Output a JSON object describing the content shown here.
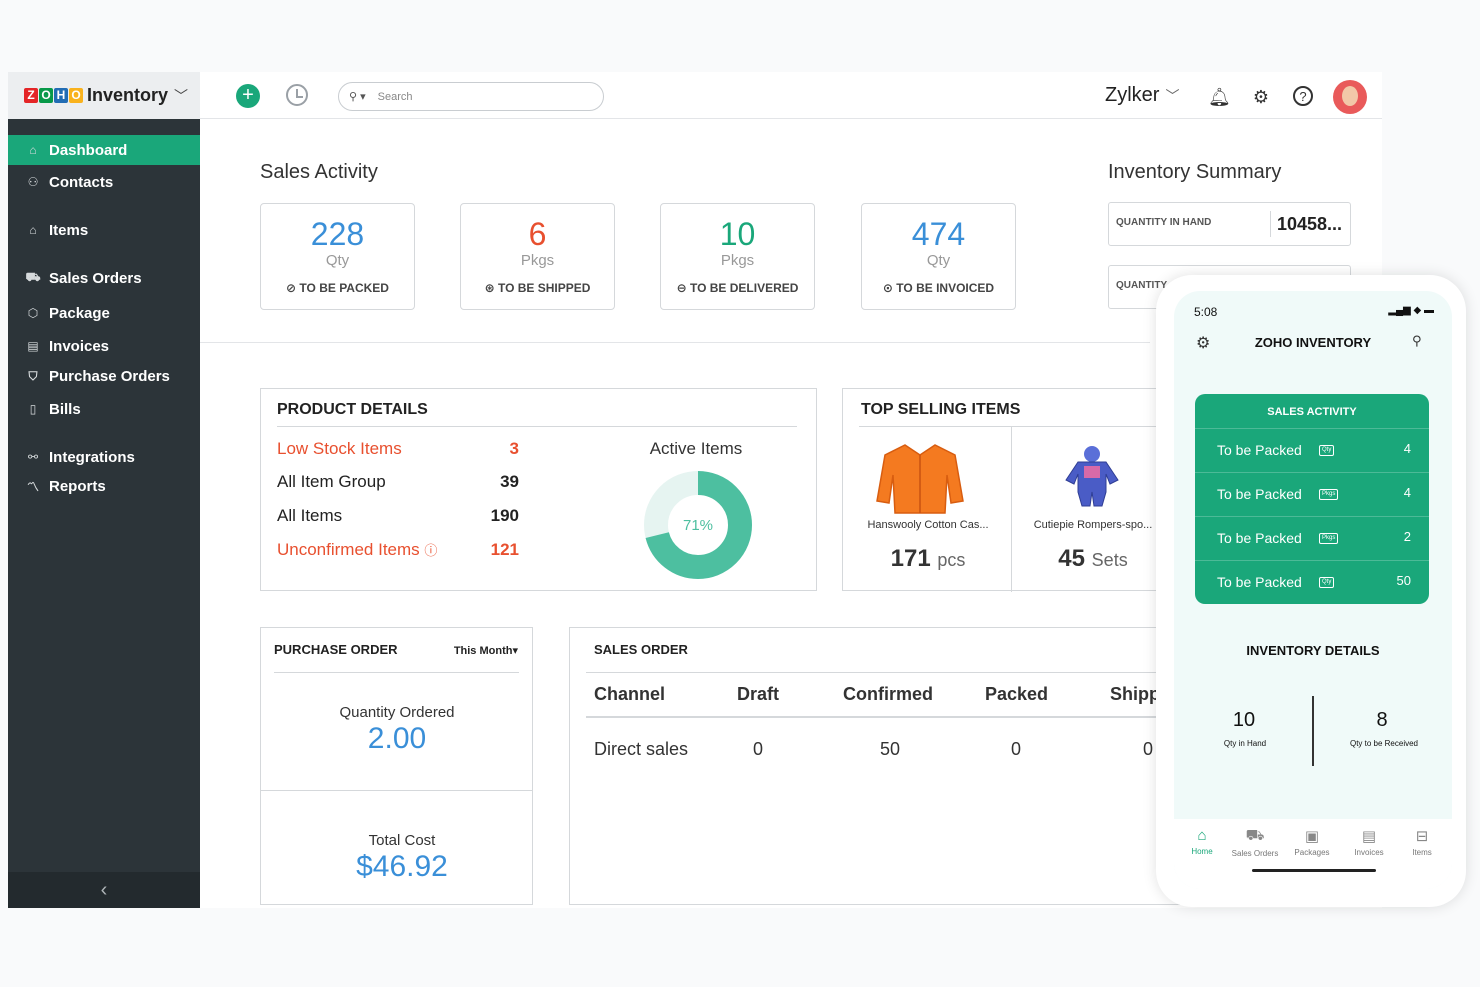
{
  "brand": {
    "name": "Inventory",
    "logo_letters": [
      "Z",
      "O",
      "H",
      "O"
    ]
  },
  "topbar": {
    "search_placeholder": "Search",
    "org_name": "Zylker"
  },
  "sidebar": {
    "items": [
      {
        "label": "Dashboard",
        "icon": "home-icon"
      },
      {
        "label": "Contacts",
        "icon": "user-icon"
      },
      {
        "label": "Items",
        "icon": "basket-icon"
      },
      {
        "label": "Sales Orders",
        "icon": "cart-icon"
      },
      {
        "label": "Package",
        "icon": "package-icon"
      },
      {
        "label": "Invoices",
        "icon": "invoice-icon"
      },
      {
        "label": "Purchase Orders",
        "icon": "bag-icon"
      },
      {
        "label": "Bills",
        "icon": "bill-icon"
      },
      {
        "label": "Integrations",
        "icon": "integrations-icon"
      },
      {
        "label": "Reports",
        "icon": "chart-icon"
      }
    ]
  },
  "sales_activity": {
    "title": "Sales Activity",
    "cards": [
      {
        "value": "228",
        "unit": "Qty",
        "caption": "TO BE PACKED",
        "color": "#3a8fd8"
      },
      {
        "value": "6",
        "unit": "Pkgs",
        "caption": "TO BE SHIPPED",
        "color": "#e8502f"
      },
      {
        "value": "10",
        "unit": "Pkgs",
        "caption": "TO BE DELIVERED",
        "color": "#1aa77a"
      },
      {
        "value": "474",
        "unit": "Qty",
        "caption": "TO BE INVOICED",
        "color": "#3a8fd8"
      }
    ]
  },
  "inventory_summary": {
    "title": "Inventory Summary",
    "rows": [
      {
        "label": "QUANTITY IN HAND",
        "value": "10458..."
      },
      {
        "label": "QUANTITY"
      }
    ]
  },
  "product_details": {
    "title": "PRODUCT DETAILS",
    "rows": [
      {
        "label": "Low Stock Items",
        "value": "3"
      },
      {
        "label": "All Item Group",
        "value": "39"
      },
      {
        "label": "All Items",
        "value": "190"
      },
      {
        "label": "Unconfirmed Items",
        "value": "121"
      }
    ],
    "active_items_title": "Active Items",
    "active_percent_label": "71%",
    "active_fraction": 0.71
  },
  "top_selling": {
    "title": "TOP SELLING ITEMS",
    "items": [
      {
        "name": "Hanswooly Cotton Cas...",
        "qty": "171",
        "unit": "pcs"
      },
      {
        "name": "Cutiepie Rompers-spo...",
        "qty": "45",
        "unit": "Sets"
      }
    ]
  },
  "purchase_order": {
    "title": "PURCHASE ORDER",
    "period": "This Month",
    "qty_label": "Quantity Ordered",
    "qty_value": "2.00",
    "cost_label": "Total Cost",
    "cost_value": "$46.92"
  },
  "sales_order": {
    "title": "SALES ORDER",
    "columns": [
      "Channel",
      "Draft",
      "Confirmed",
      "Packed",
      "Shipp"
    ],
    "rows": [
      [
        "Direct sales",
        "0",
        "50",
        "0",
        "0"
      ]
    ]
  },
  "mobile": {
    "time": "5:08",
    "title": "ZOHO INVENTORY",
    "sales_activity_title": "SALES ACTIVITY",
    "sales_rows": [
      {
        "label": "To be Packed",
        "badge": "Qty",
        "value": "4"
      },
      {
        "label": "To be Packed",
        "badge": "Pkgs",
        "value": "4"
      },
      {
        "label": "To be Packed",
        "badge": "Pkgs",
        "value": "2"
      },
      {
        "label": "To be Packed",
        "badge": "Qty",
        "value": "50"
      }
    ],
    "inventory_title": "INVENTORY DETAILS",
    "inventory": [
      {
        "value": "10",
        "label": "Qty in Hand"
      },
      {
        "value": "8",
        "label": "Qty to be Received"
      }
    ],
    "tabs": [
      {
        "label": "Home",
        "active": true
      },
      {
        "label": "Sales Orders"
      },
      {
        "label": "Packages"
      },
      {
        "label": "Invoices"
      },
      {
        "label": "Items"
      }
    ]
  },
  "colors": {
    "accent": "#1aa77a",
    "sidebar_bg": "#2c3439",
    "danger": "#e8502f",
    "blue": "#3a8fd8"
  }
}
